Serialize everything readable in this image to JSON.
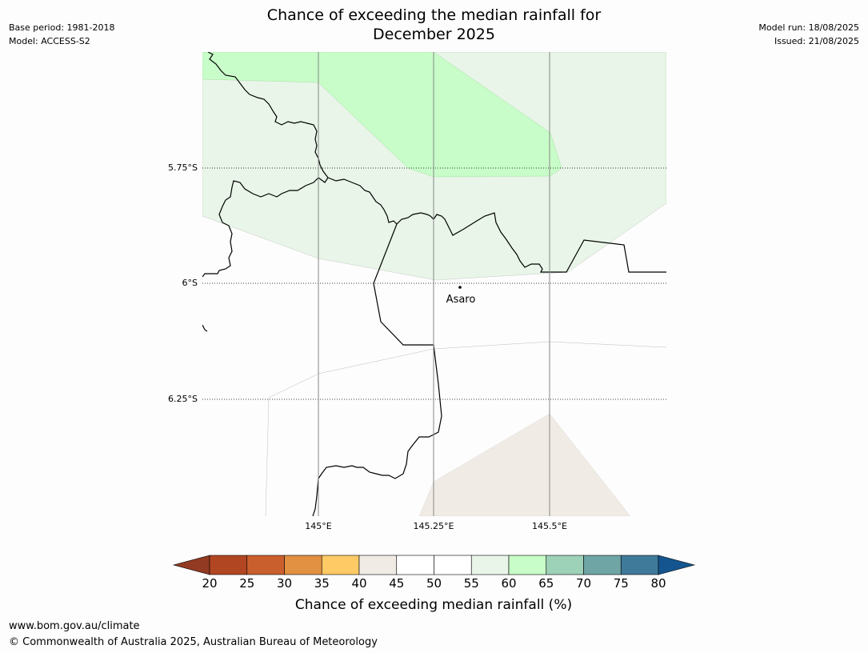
{
  "header": {
    "title_line1": "Chance of exceeding the median rainfall for",
    "title_line2": "December 2025",
    "base_period": "Base period: 1981-2018",
    "model": "Model: ACCESS-S2",
    "model_run": "Model run: 18/08/2025",
    "issued": "Issued: 21/08/2025"
  },
  "map": {
    "lat_labels": [
      "5.75°S",
      "6°S",
      "6.25°S"
    ],
    "lon_labels": [
      "145°E",
      "145.25°E",
      "145.5°E"
    ],
    "place_label": "Asaro",
    "region_colors": {
      "band_55_60": "#e8f5e8",
      "band_60_65": "#c8fcc8",
      "band_40_45": "#f0ebe4"
    }
  },
  "colorbar": {
    "ticks": [
      "20",
      "25",
      "30",
      "35",
      "40",
      "45",
      "50",
      "55",
      "60",
      "65",
      "70",
      "75",
      "80"
    ],
    "colors": [
      "#933a22",
      "#b14623",
      "#ca5f2e",
      "#e29041",
      "#fdca65",
      "#f0ebe4",
      "#ffffff",
      "#ffffff",
      "#e8f5e8",
      "#c8fcc8",
      "#9dd1b8",
      "#6fa5a5",
      "#407a9a",
      "#145590"
    ],
    "label": "Chance of exceeding median rainfall (%)"
  },
  "footer": {
    "url": "www.bom.gov.au/climate",
    "copyright": "© Commonwealth of Australia 2025, Australian Bureau of Meteorology"
  }
}
